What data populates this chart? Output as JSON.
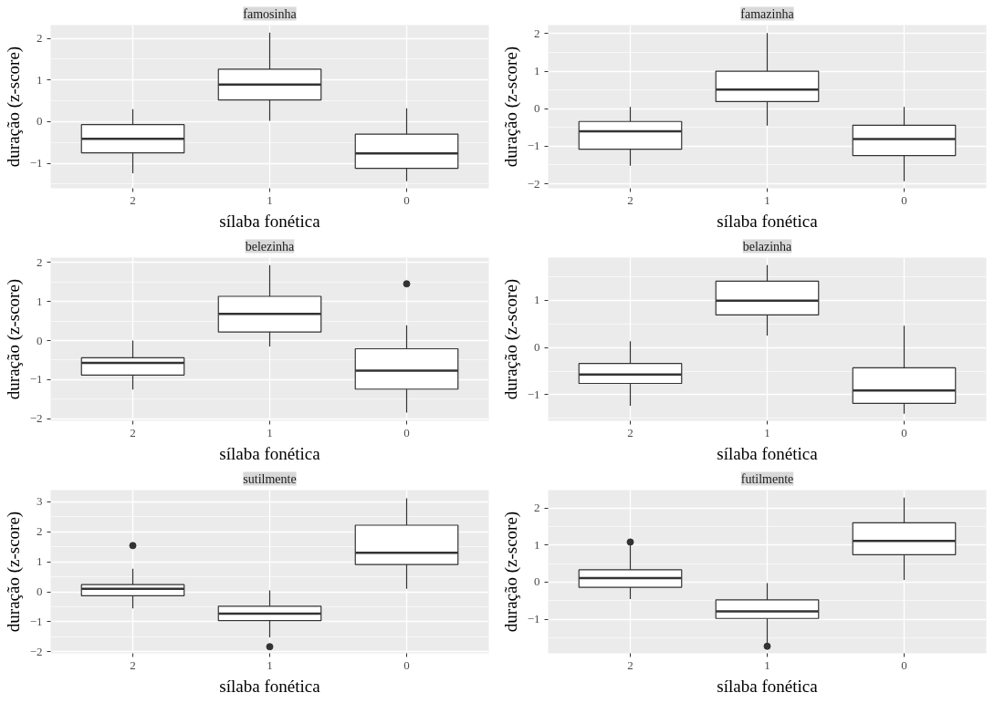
{
  "chart_data": [
    {
      "type": "box",
      "title": "famosinha",
      "xlabel": "sílaba fonética",
      "ylabel": "duração (z-score)",
      "categories": [
        "2",
        "1",
        "0"
      ],
      "ylim": [
        -1.6,
        2.32
      ],
      "yticks": [
        -1,
        0,
        1,
        2
      ],
      "grid": true,
      "boxes": [
        {
          "low": -1.24,
          "q1": -0.75,
          "median": -0.41,
          "q3": -0.07,
          "high": 0.3
        },
        {
          "low": 0.02,
          "q1": 0.52,
          "median": 0.89,
          "q3": 1.26,
          "high": 2.14
        },
        {
          "low": -1.43,
          "q1": -1.12,
          "median": -0.76,
          "q3": -0.3,
          "high": 0.32
        }
      ]
    },
    {
      "type": "box",
      "title": "famazinha",
      "xlabel": "sílaba fonética",
      "ylabel": "duração (z-score)",
      "categories": [
        "2",
        "1",
        "0"
      ],
      "ylim": [
        -2.12,
        2.23
      ],
      "yticks": [
        -2,
        -1,
        0,
        1,
        2
      ],
      "grid": true,
      "boxes": [
        {
          "low": -1.52,
          "q1": -1.08,
          "median": -0.6,
          "q3": -0.34,
          "high": 0.05
        },
        {
          "low": -0.45,
          "q1": 0.19,
          "median": 0.51,
          "q3": 1.0,
          "high": 2.02
        },
        {
          "low": -1.93,
          "q1": -1.25,
          "median": -0.81,
          "q3": -0.44,
          "high": 0.05
        }
      ]
    },
    {
      "type": "box",
      "title": "belezinha",
      "xlabel": "sílaba fonética",
      "ylabel": "duração (z-score)",
      "categories": [
        "2",
        "1",
        "0"
      ],
      "ylim": [
        -2.05,
        2.12
      ],
      "yticks": [
        -2,
        -1,
        0,
        1,
        2
      ],
      "grid": true,
      "boxes": [
        {
          "low": -1.25,
          "q1": -0.88,
          "median": -0.57,
          "q3": -0.44,
          "high": 0.0
        },
        {
          "low": -0.15,
          "q1": 0.22,
          "median": 0.68,
          "q3": 1.13,
          "high": 1.93
        },
        {
          "low": -1.84,
          "q1": -1.24,
          "median": -0.77,
          "q3": -0.21,
          "high": 0.39,
          "outliers": [
            1.45
          ]
        }
      ]
    },
    {
      "type": "box",
      "title": "belazinha",
      "xlabel": "sílaba fonética",
      "ylabel": "duração (z-score)",
      "categories": [
        "2",
        "1",
        "0"
      ],
      "ylim": [
        -1.55,
        1.9
      ],
      "yticks": [
        -1,
        0,
        1
      ],
      "grid": true,
      "boxes": [
        {
          "low": -1.23,
          "q1": -0.76,
          "median": -0.57,
          "q3": -0.34,
          "high": 0.13
        },
        {
          "low": 0.25,
          "q1": 0.69,
          "median": 0.99,
          "q3": 1.4,
          "high": 1.74
        },
        {
          "low": -1.4,
          "q1": -1.18,
          "median": -0.91,
          "q3": -0.43,
          "high": 0.46
        }
      ]
    },
    {
      "type": "box",
      "title": "sutilmente",
      "xlabel": "sílaba fonética",
      "ylabel": "duração (z-score)",
      "categories": [
        "2",
        "1",
        "0"
      ],
      "ylim": [
        -2.05,
        3.39
      ],
      "yticks": [
        -2,
        -1,
        0,
        1,
        2,
        3
      ],
      "grid": true,
      "boxes": [
        {
          "low": -0.55,
          "q1": -0.13,
          "median": 0.1,
          "q3": 0.24,
          "high": 0.77,
          "outliers": [
            1.54
          ]
        },
        {
          "low": -1.52,
          "q1": -0.96,
          "median": -0.73,
          "q3": -0.48,
          "high": 0.05,
          "outliers": [
            -1.83
          ]
        },
        {
          "low": 0.1,
          "q1": 0.91,
          "median": 1.3,
          "q3": 2.22,
          "high": 3.12
        }
      ]
    },
    {
      "type": "box",
      "title": "futilmente",
      "xlabel": "sílaba fonética",
      "ylabel": "duração (z-score)",
      "categories": [
        "2",
        "1",
        "0"
      ],
      "ylim": [
        -1.92,
        2.48
      ],
      "yticks": [
        -1,
        0,
        1,
        2
      ],
      "grid": true,
      "boxes": [
        {
          "low": -0.46,
          "q1": -0.14,
          "median": 0.11,
          "q3": 0.33,
          "high": 1.04,
          "outliers": [
            1.08
          ]
        },
        {
          "low": -1.68,
          "q1": -0.98,
          "median": -0.79,
          "q3": -0.48,
          "high": -0.03,
          "outliers": [
            -1.73
          ]
        },
        {
          "low": 0.06,
          "q1": 0.74,
          "median": 1.11,
          "q3": 1.6,
          "high": 2.28
        }
      ]
    }
  ]
}
